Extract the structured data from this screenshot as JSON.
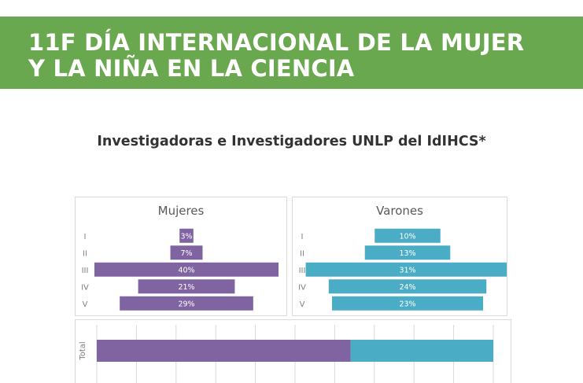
{
  "header": {
    "line1": "11F DÍA INTERNACIONAL DE LA MUJER",
    "line2": "Y LA NIÑA EN LA CIENCIA"
  },
  "subtitle": "Investigadoras e Investigadores UNLP del IdIHCS*",
  "colors": {
    "banner": "#6aa84f",
    "mujeres": "#8064a2",
    "varones": "#4bacc6"
  },
  "chart_data": [
    {
      "type": "bar",
      "title": "Mujeres",
      "orientation": "horizontal",
      "categories": [
        "I",
        "II",
        "III",
        "IV",
        "V"
      ],
      "values": [
        3,
        7,
        40,
        21,
        29
      ],
      "value_labels": [
        "3%",
        "7%",
        "40%",
        "21%",
        "29%"
      ],
      "color": "#8064a2",
      "centered": true
    },
    {
      "type": "bar",
      "title": "Varones",
      "orientation": "horizontal",
      "categories": [
        "I",
        "II",
        "III",
        "IV",
        "V"
      ],
      "values": [
        10,
        13,
        31,
        24,
        23
      ],
      "value_labels": [
        "10%",
        "13%",
        "31%",
        "24%",
        "23%"
      ],
      "color": "#4bacc6",
      "centered": true
    },
    {
      "type": "bar",
      "orientation": "horizontal",
      "stacked": true,
      "categories": [
        "Total"
      ],
      "series": [
        {
          "values": [
            64
          ]
        },
        {
          "values": [
            36
          ]
        }
      ],
      "colors": [
        "#8064a2",
        "#4bacc6"
      ],
      "xlim": [
        0,
        100
      ],
      "grid": true
    }
  ]
}
